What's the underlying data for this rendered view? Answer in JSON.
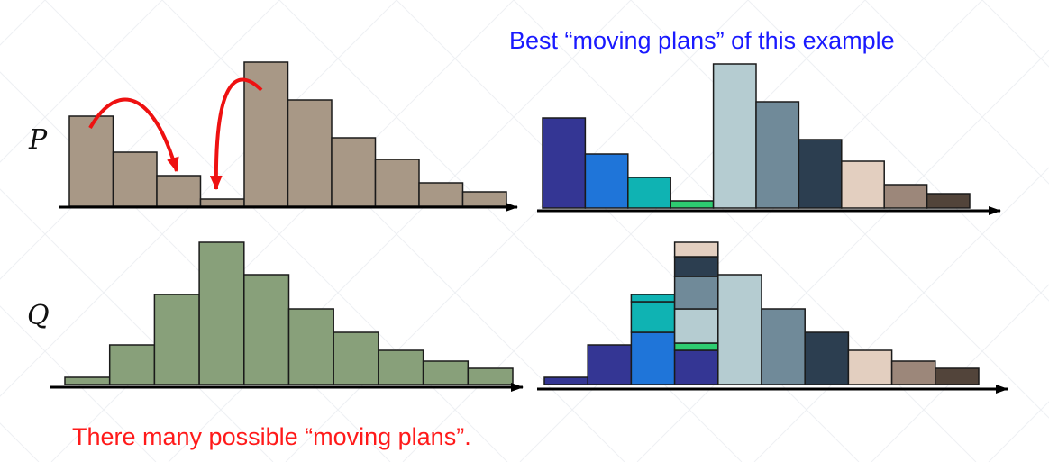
{
  "title": "Best “moving plans” of this example",
  "footer": "There many possible “moving plans”.",
  "labels": {
    "p": "P",
    "q": "Q"
  },
  "colors": {
    "title": "#1a1aff",
    "footer": "#ff1a1a",
    "p_fill": "#a89886",
    "q_fill": "#88a07a",
    "arrow": "#ee1111",
    "outline": "#1a1a1a"
  },
  "p_histogram": {
    "bins": 10,
    "heights": [
      100,
      60,
      34,
      8,
      160,
      118,
      76,
      52,
      26,
      16
    ]
  },
  "q_histogram": {
    "bins": 10,
    "heights": [
      8,
      44,
      100,
      158,
      122,
      84,
      58,
      38,
      26,
      18
    ]
  },
  "moving_plan_palette": [
    "#343694",
    "#1f75d9",
    "#0fb3b3",
    "#2ecc71",
    "#b5ccd1",
    "#708a99",
    "#2c3e50",
    "#e3cfc0",
    "#9c877a",
    "#52443a"
  ],
  "moving_plans": {
    "source_segments": [
      [
        {
          "c": 0,
          "h": 100
        }
      ],
      [
        {
          "c": 1,
          "h": 60
        }
      ],
      [
        {
          "c": 2,
          "h": 34
        }
      ],
      [
        {
          "c": 3,
          "h": 8
        }
      ],
      [
        {
          "c": 4,
          "h": 160
        }
      ],
      [
        {
          "c": 5,
          "h": 118
        }
      ],
      [
        {
          "c": 6,
          "h": 76
        }
      ],
      [
        {
          "c": 7,
          "h": 52
        }
      ],
      [
        {
          "c": 8,
          "h": 26
        }
      ],
      [
        {
          "c": 9,
          "h": 16
        }
      ]
    ],
    "target_segments": [
      [
        {
          "c": 0,
          "h": 8
        }
      ],
      [
        {
          "c": 0,
          "h": 44
        }
      ],
      [
        {
          "c": 1,
          "h": 58
        },
        {
          "c": 2,
          "h": 34
        },
        {
          "c": 2,
          "h": 8
        }
      ],
      [
        {
          "c": 0,
          "h": 38
        },
        {
          "c": 3,
          "h": 8
        },
        {
          "c": 4,
          "h": 38
        },
        {
          "c": 5,
          "h": 36
        },
        {
          "c": 6,
          "h": 22
        },
        {
          "c": 7,
          "h": 16
        }
      ],
      [
        {
          "c": 4,
          "h": 122
        }
      ],
      [
        {
          "c": 5,
          "h": 84
        }
      ],
      [
        {
          "c": 6,
          "h": 58
        }
      ],
      [
        {
          "c": 7,
          "h": 38
        }
      ],
      [
        {
          "c": 8,
          "h": 26
        }
      ],
      [
        {
          "c": 9,
          "h": 18
        }
      ]
    ]
  }
}
